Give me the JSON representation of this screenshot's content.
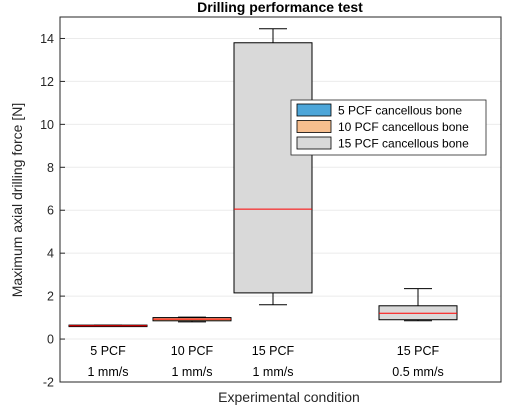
{
  "chart_data": {
    "type": "boxplot",
    "title": "Drilling performance test",
    "xlabel": "Experimental condition",
    "ylabel": "Maximum axial drilling force [N]",
    "ylim": [
      -2,
      15
    ],
    "yticks": [
      -2,
      0,
      2,
      4,
      6,
      8,
      10,
      12,
      14
    ],
    "grid": true,
    "legend_position": "right-center",
    "categories": [
      {
        "line1": "5 PCF",
        "line2": "1 mm/s"
      },
      {
        "line1": "10 PCF",
        "line2": "1 mm/s"
      },
      {
        "line1": "15 PCF",
        "line2": "1 mm/s"
      },
      {
        "line1": "15 PCF",
        "line2": "0.5 mm/s"
      }
    ],
    "series": [
      {
        "name": "5 PCF cancellous bone",
        "color": "#4DA6D9"
      },
      {
        "name": "10 PCF cancellous bone",
        "color": "#F7BE8E"
      },
      {
        "name": "15 PCF cancellous bone",
        "color": "#D9D9D9"
      }
    ],
    "boxes": [
      {
        "category": 0,
        "series": 0,
        "whisker_low": 0.6,
        "q1": 0.6,
        "median": 0.62,
        "q3": 0.65,
        "whisker_high": 0.65
      },
      {
        "category": 1,
        "series": 1,
        "whisker_low": 0.8,
        "q1": 0.85,
        "median": 0.93,
        "q3": 1.0,
        "whisker_high": 1.02
      },
      {
        "category": 2,
        "series": 2,
        "whisker_low": 1.6,
        "q1": 2.15,
        "median": 6.05,
        "q3": 13.8,
        "whisker_high": 14.45
      },
      {
        "category": 3,
        "series": 2,
        "whisker_low": 0.85,
        "q1": 0.9,
        "median": 1.2,
        "q3": 1.55,
        "whisker_high": 2.35
      }
    ],
    "median_color": "#FF0000"
  }
}
